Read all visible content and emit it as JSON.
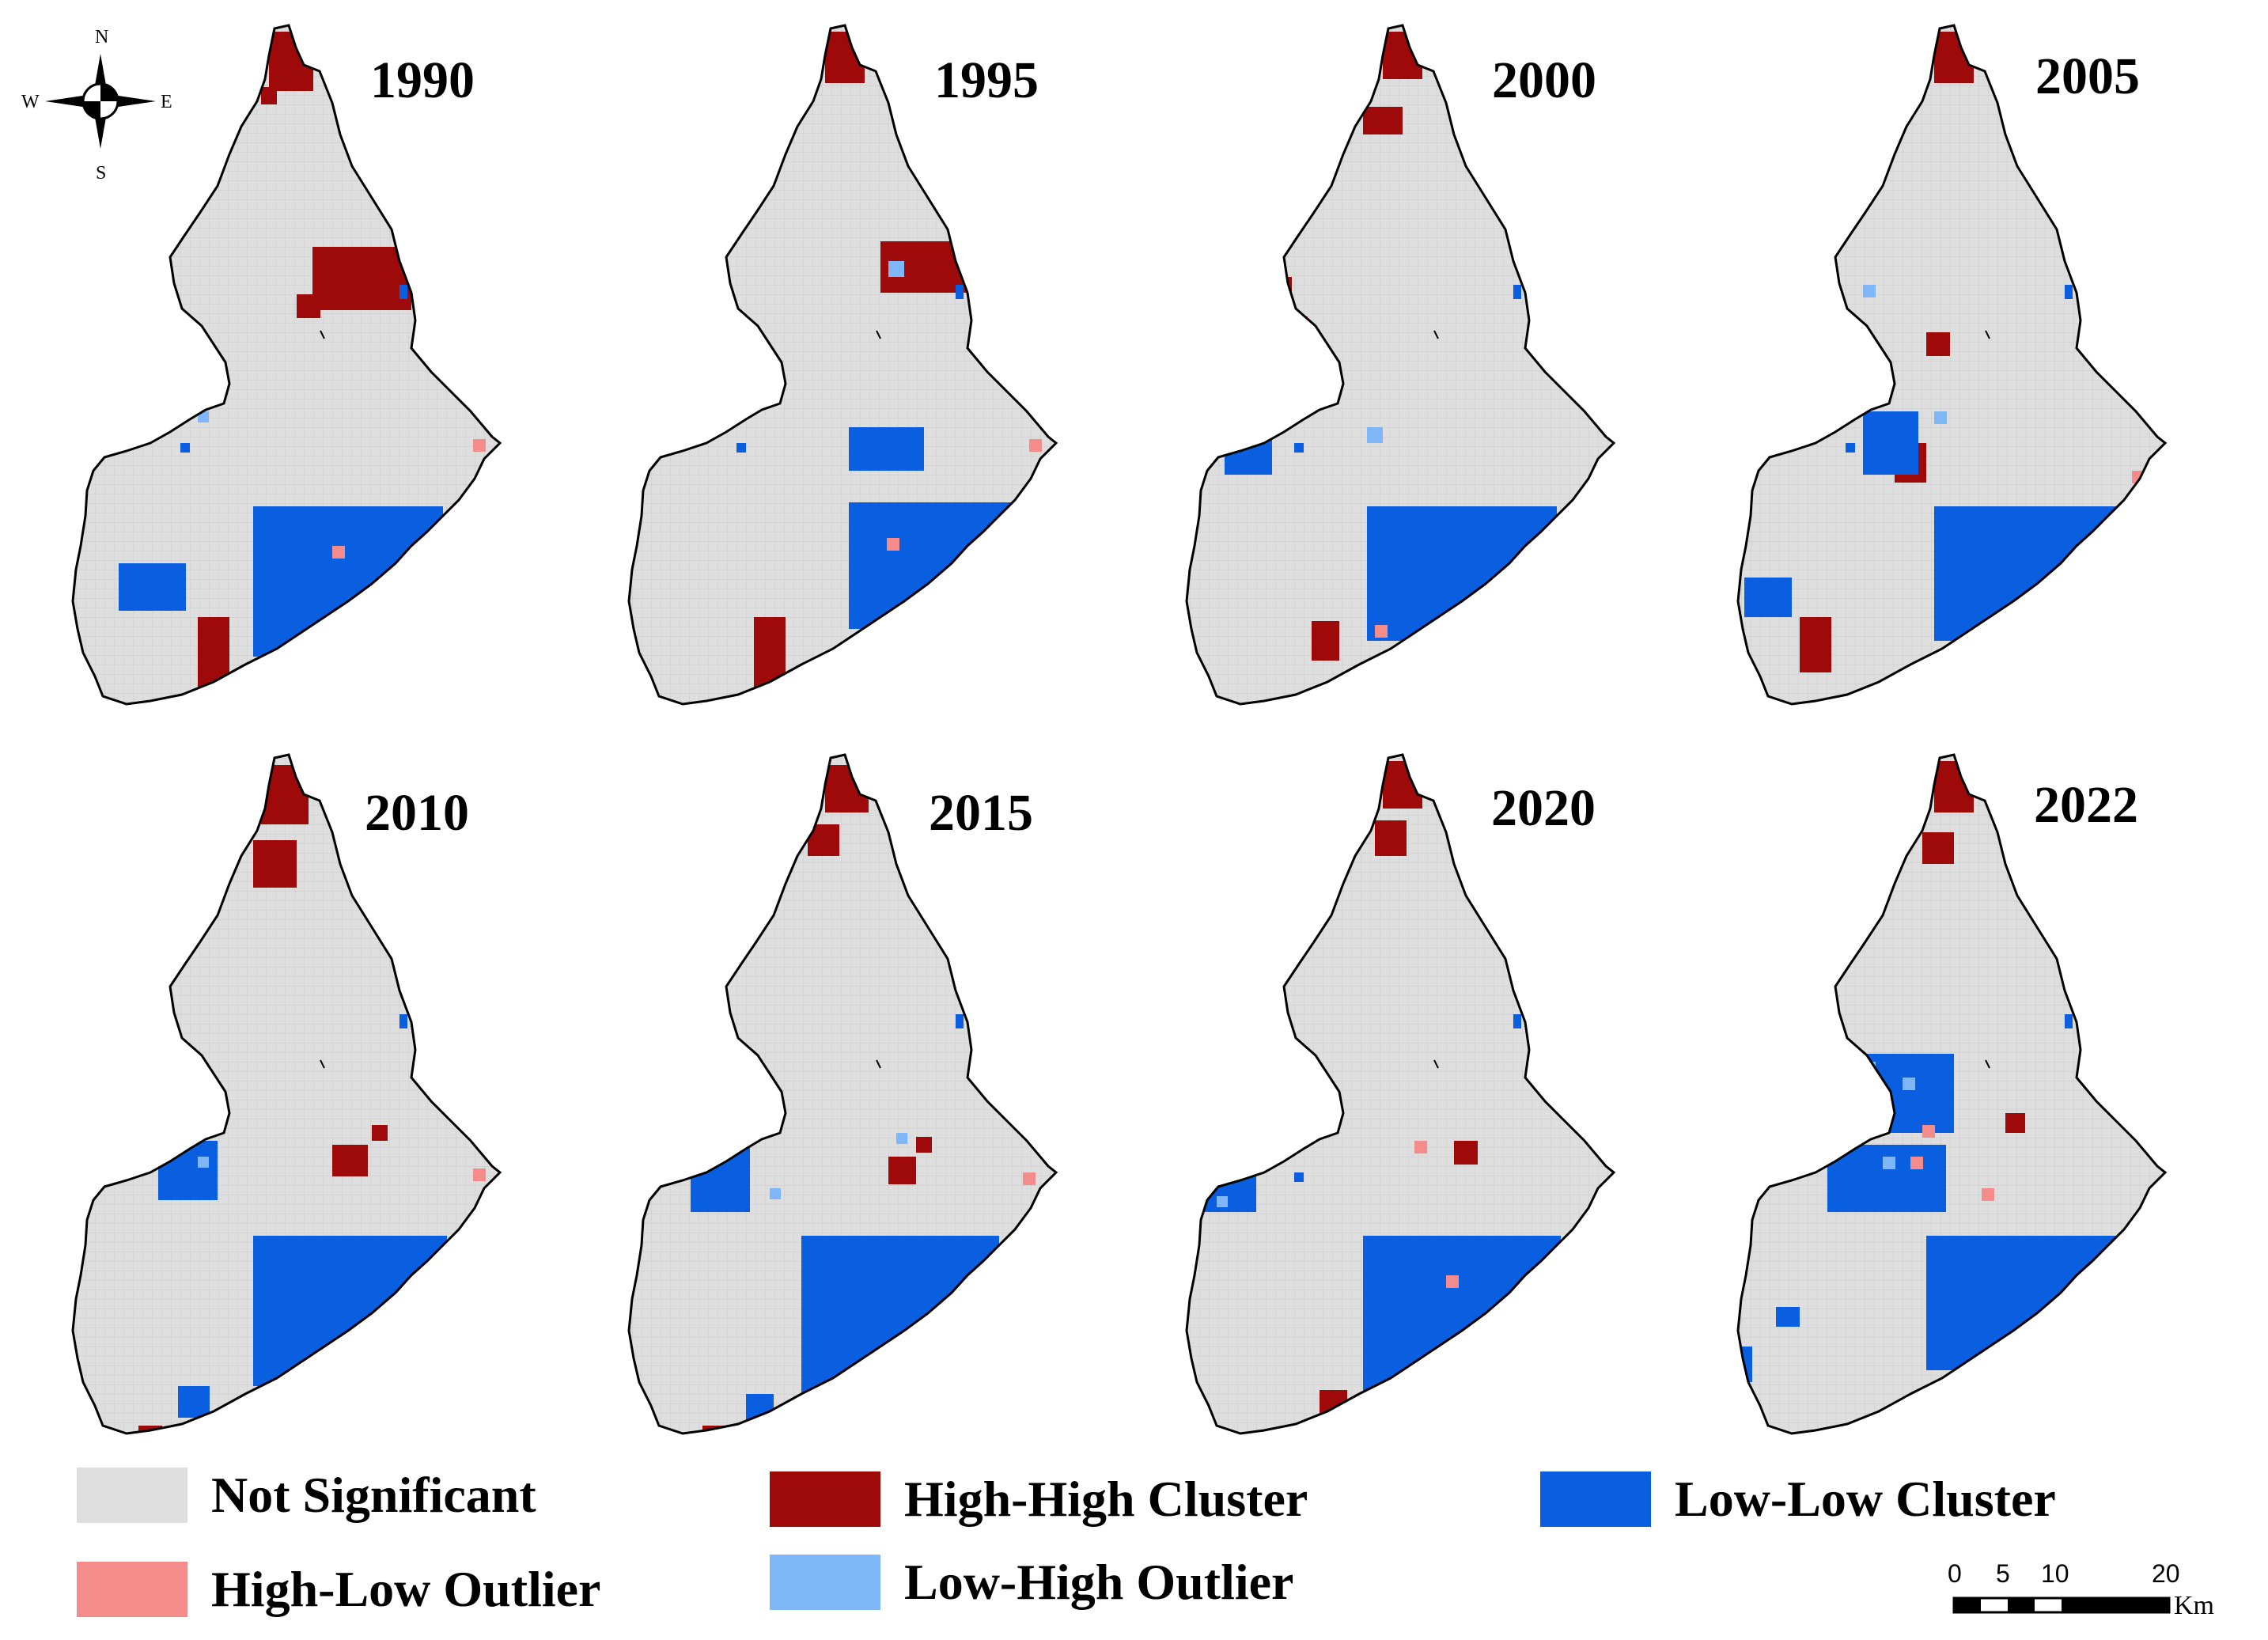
{
  "maps": [
    {
      "year": "1990"
    },
    {
      "year": "1995"
    },
    {
      "year": "2000"
    },
    {
      "year": "2005"
    },
    {
      "year": "2010"
    },
    {
      "year": "2015"
    },
    {
      "year": "2020"
    },
    {
      "year": "2022"
    }
  ],
  "compass": {
    "north": "N",
    "south": "S",
    "east": "E",
    "west": "W"
  },
  "legend": {
    "not_significant": {
      "label": "Not Significant",
      "color": "#dedede"
    },
    "high_high": {
      "label": "High-High Cluster",
      "color": "#9e0a0a"
    },
    "low_low": {
      "label": "Low-Low Cluster",
      "color": "#0a5fe0"
    },
    "high_low": {
      "label": "High-Low Outlier",
      "color": "#f58c8c"
    },
    "low_high": {
      "label": "Low-High Outlier",
      "color": "#7fb6f7"
    }
  },
  "scalebar": {
    "ticks": [
      "0",
      "5",
      "10",
      "20"
    ],
    "unit": "Km"
  }
}
